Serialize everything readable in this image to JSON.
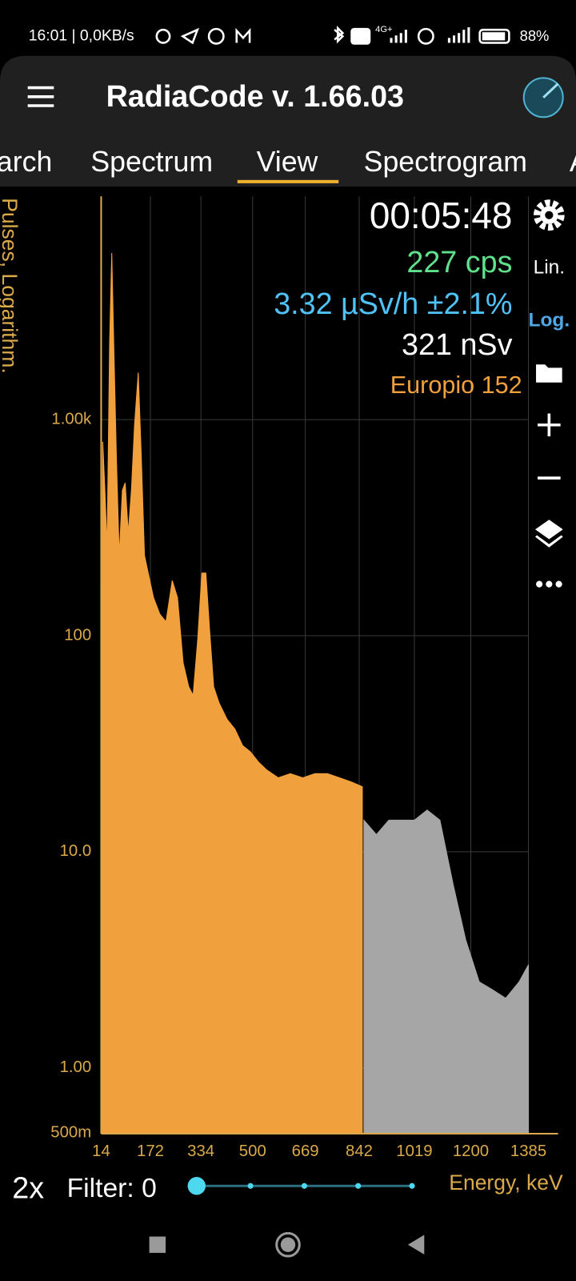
{
  "status_bar": {
    "time": "16:01 | 0,0KB/s",
    "network": "4G+",
    "battery": "88%"
  },
  "app_bar": {
    "title": "RadiaCode v. 1.66.03"
  },
  "tabs": [
    "arch",
    "Spectrum",
    "View",
    "Spectrogram",
    "A"
  ],
  "readouts": {
    "elapsed": "00:05:48",
    "count_rate": "227 cps",
    "dose_rate": "3.32 µSv/h ±2.1%",
    "dose": "321 nSv",
    "source": "Europio 152"
  },
  "toolbar": {
    "linear": "Lin.",
    "log": "Log."
  },
  "controls": {
    "zoom": "2x",
    "filter": "Filter: 0"
  },
  "chart_data": {
    "type": "area",
    "x_label": "Energy, keV",
    "y_label": "Pulses, Logarithm.",
    "log_y": true,
    "grid": true,
    "xlim": [
      14,
      1480
    ],
    "xticks": [
      14,
      172,
      334,
      500,
      669,
      842,
      1019,
      1200,
      1385
    ],
    "ylim": [
      0.5,
      10800
    ],
    "yticks": [
      {
        "value": 0.5,
        "label": "500m"
      },
      {
        "value": 1,
        "label": "1.00"
      },
      {
        "value": 10,
        "label": "10.0"
      },
      100,
      {
        "value": 1000,
        "label": "1.00k"
      }
    ],
    "series": [
      {
        "color": "#f0a03c",
        "x": [
          14,
          19,
          26,
          33,
          41,
          48,
          55,
          63,
          72,
          82,
          91,
          101,
          111,
          121,
          133,
          143,
          153,
          165,
          182,
          202,
          222,
          242,
          259,
          277,
          295,
          309,
          324,
          337,
          350,
          362,
          375,
          392,
          418,
          443,
          468,
          493,
          519,
          544,
          582,
          621,
          661,
          700,
          740,
          779,
          818,
          852
        ],
        "values": [
          19,
          790,
          470,
          255,
          2250,
          5900,
          2050,
          660,
          235,
          470,
          510,
          300,
          470,
          940,
          1650,
          660,
          235,
          195,
          150,
          126,
          116,
          180,
          150,
          75,
          58,
          53,
          97,
          195,
          195,
          106,
          58,
          49,
          41,
          37,
          31,
          29,
          26,
          24,
          22,
          23,
          22,
          23,
          23,
          22,
          21,
          20
        ]
      },
      {
        "color": "#a6a6a6",
        "x": [
          857,
          897,
          937,
          977,
          1019,
          1060,
          1101,
          1143,
          1184,
          1227,
          1269,
          1312,
          1355,
          1385
        ],
        "values": [
          14,
          12,
          14,
          14,
          14,
          15.6,
          14,
          7.1,
          3.9,
          2.5,
          2.3,
          2.1,
          2.5,
          3.0
        ]
      }
    ]
  }
}
